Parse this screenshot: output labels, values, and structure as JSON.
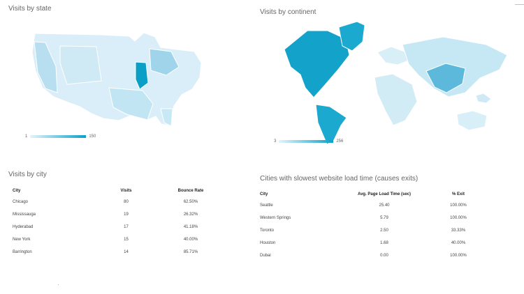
{
  "visits_by_state": {
    "title": "Visits by state",
    "scale_min": "1",
    "scale_max": "150"
  },
  "visits_by_continent": {
    "title": "Visits by continent",
    "scale_min": "3",
    "scale_max": "256"
  },
  "visits_by_city": {
    "title": "Visits by city",
    "columns": [
      "City",
      "Visits",
      "Bounce Rate"
    ],
    "rows": [
      {
        "city": "Chicago",
        "visits": "80",
        "bounce_rate": "62.50%"
      },
      {
        "city": "Mississauga",
        "visits": "19",
        "bounce_rate": "26.32%"
      },
      {
        "city": "Hyderabad",
        "visits": "17",
        "bounce_rate": "41.18%"
      },
      {
        "city": "New York",
        "visits": "15",
        "bounce_rate": "40.00%"
      },
      {
        "city": "Barrington",
        "visits": "14",
        "bounce_rate": "85.71%"
      }
    ]
  },
  "slowest_load": {
    "title": "Cities with slowest website load time (causes exits)",
    "columns": [
      "City",
      "Avg. Page Load Time (sec)",
      "% Exit"
    ],
    "rows": [
      {
        "city": "Seattle",
        "load_time": "25.40",
        "exit": "100.00%"
      },
      {
        "city": "Western Springs",
        "load_time": "5.79",
        "exit": "100.00%"
      },
      {
        "city": "Toronto",
        "load_time": "2.50",
        "exit": "33.33%"
      },
      {
        "city": "Houston",
        "load_time": "1.68",
        "exit": "40.00%"
      },
      {
        "city": "Dubai",
        "load_time": "0.00",
        "exit": "100.00%"
      }
    ]
  },
  "colors": {
    "light": "#d7eef8",
    "mid": "#8ccde6",
    "dark": "#0b9fc7"
  }
}
